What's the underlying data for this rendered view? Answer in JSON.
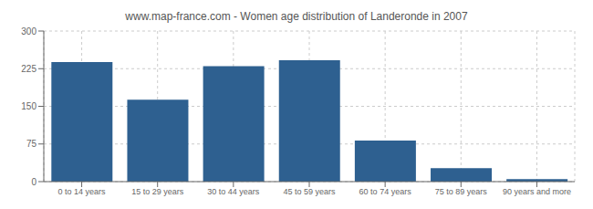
{
  "chart_data": {
    "type": "bar",
    "title": "www.map-france.com - Women age distribution of Landeronde in 2007",
    "categories": [
      "0 to 14 years",
      "15 to 29 years",
      "30 to 44 years",
      "45 to 59 years",
      "60 to 74 years",
      "75 to 89 years",
      "90 years and more"
    ],
    "values": [
      238,
      163,
      230,
      242,
      82,
      27,
      5
    ],
    "color": "#2e6090",
    "ylim": [
      0,
      300
    ],
    "yticks": [
      0,
      75,
      150,
      225,
      300
    ],
    "grid": true
  }
}
